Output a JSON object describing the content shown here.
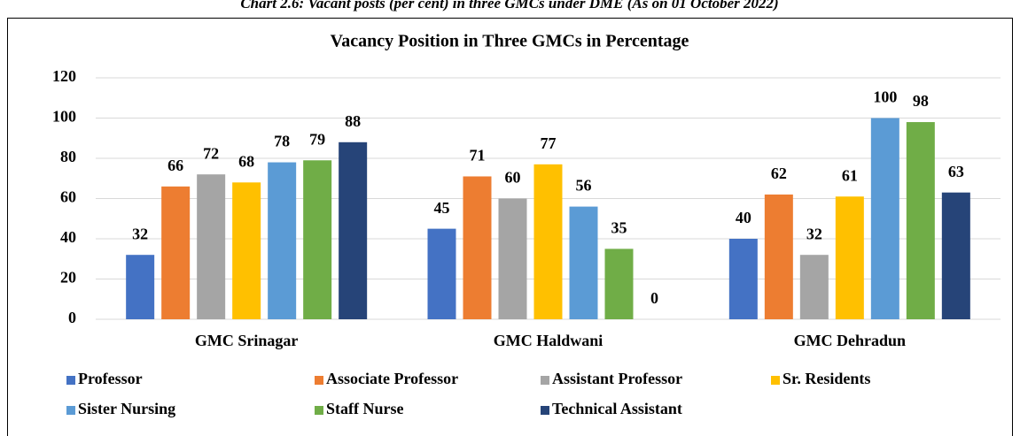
{
  "chart_data": {
    "type": "bar",
    "caption": "Chart 2.6: Vacant posts (per cent) in three GMCs under DME (As on 01 October 2022)",
    "title": "Vacancy Position in Three GMCs in Percentage",
    "categories": [
      "GMC Srinagar",
      "GMC Haldwani",
      "GMC Dehradun"
    ],
    "series": [
      {
        "name": "Professor",
        "color": "#4472c4",
        "values": [
          32,
          45,
          40
        ]
      },
      {
        "name": "Associate Professor",
        "color": "#ed7d31",
        "values": [
          66,
          71,
          62
        ]
      },
      {
        "name": "Assistant Professor",
        "color": "#a5a5a5",
        "values": [
          72,
          60,
          32
        ]
      },
      {
        "name": "Sr. Residents",
        "color": "#ffc000",
        "values": [
          68,
          77,
          61
        ]
      },
      {
        "name": "Sister Nursing",
        "color": "#5b9bd5",
        "values": [
          78,
          56,
          100
        ]
      },
      {
        "name": "Staff Nurse",
        "color": "#70ad47",
        "values": [
          79,
          35,
          98
        ]
      },
      {
        "name": "Technical Assistant",
        "color": "#264478",
        "values": [
          88,
          0,
          63
        ]
      }
    ],
    "ylim": [
      0,
      120
    ],
    "yticks": [
      0,
      20,
      40,
      60,
      80,
      100,
      120
    ],
    "grid": true,
    "legend": "bottom"
  }
}
